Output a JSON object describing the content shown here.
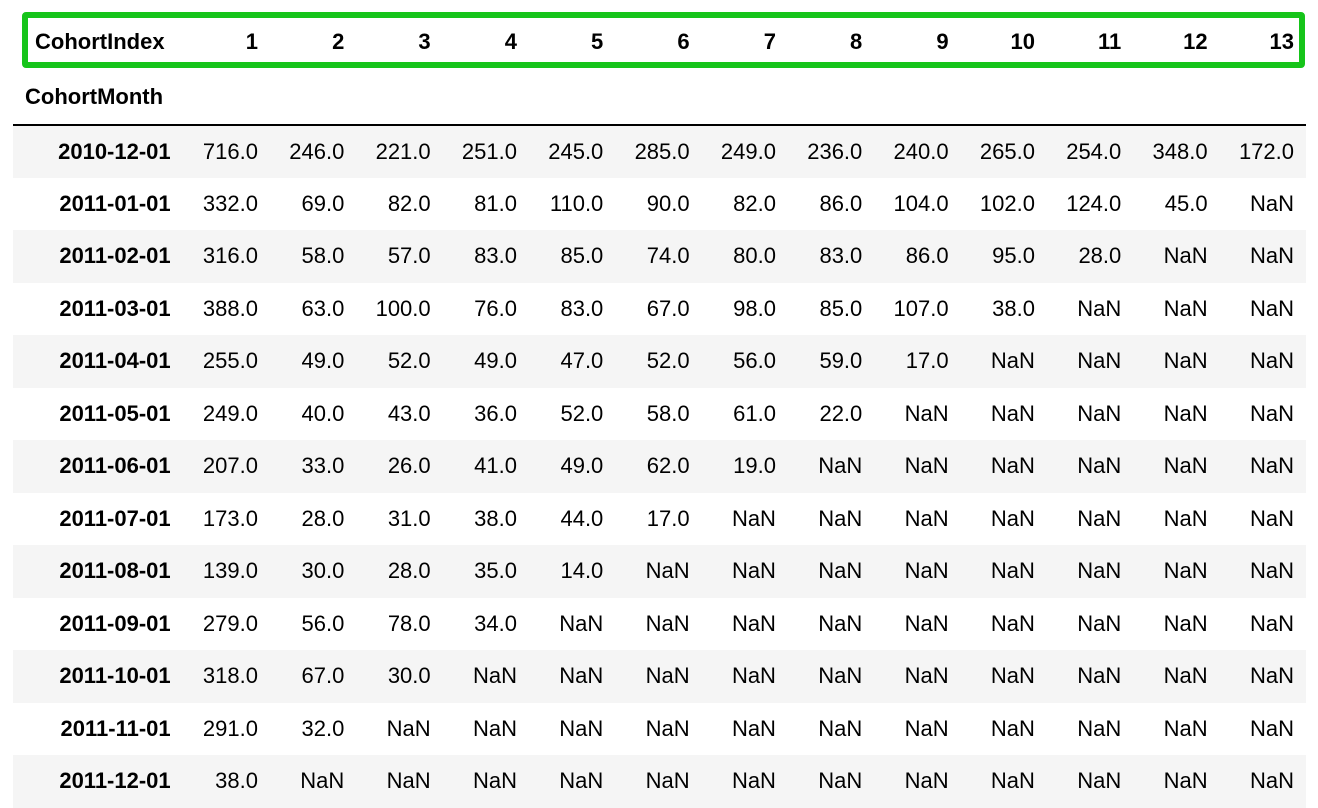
{
  "table": {
    "columns_name": "CohortIndex",
    "index_name": "CohortMonth",
    "columns": [
      "1",
      "2",
      "3",
      "4",
      "5",
      "6",
      "7",
      "8",
      "9",
      "10",
      "11",
      "12",
      "13"
    ],
    "rows": [
      {
        "index": "2010-12-01",
        "values": [
          "716.0",
          "246.0",
          "221.0",
          "251.0",
          "245.0",
          "285.0",
          "249.0",
          "236.0",
          "240.0",
          "265.0",
          "254.0",
          "348.0",
          "172.0"
        ]
      },
      {
        "index": "2011-01-01",
        "values": [
          "332.0",
          "69.0",
          "82.0",
          "81.0",
          "110.0",
          "90.0",
          "82.0",
          "86.0",
          "104.0",
          "102.0",
          "124.0",
          "45.0",
          "NaN"
        ]
      },
      {
        "index": "2011-02-01",
        "values": [
          "316.0",
          "58.0",
          "57.0",
          "83.0",
          "85.0",
          "74.0",
          "80.0",
          "83.0",
          "86.0",
          "95.0",
          "28.0",
          "NaN",
          "NaN"
        ]
      },
      {
        "index": "2011-03-01",
        "values": [
          "388.0",
          "63.0",
          "100.0",
          "76.0",
          "83.0",
          "67.0",
          "98.0",
          "85.0",
          "107.0",
          "38.0",
          "NaN",
          "NaN",
          "NaN"
        ]
      },
      {
        "index": "2011-04-01",
        "values": [
          "255.0",
          "49.0",
          "52.0",
          "49.0",
          "47.0",
          "52.0",
          "56.0",
          "59.0",
          "17.0",
          "NaN",
          "NaN",
          "NaN",
          "NaN"
        ]
      },
      {
        "index": "2011-05-01",
        "values": [
          "249.0",
          "40.0",
          "43.0",
          "36.0",
          "52.0",
          "58.0",
          "61.0",
          "22.0",
          "NaN",
          "NaN",
          "NaN",
          "NaN",
          "NaN"
        ]
      },
      {
        "index": "2011-06-01",
        "values": [
          "207.0",
          "33.0",
          "26.0",
          "41.0",
          "49.0",
          "62.0",
          "19.0",
          "NaN",
          "NaN",
          "NaN",
          "NaN",
          "NaN",
          "NaN"
        ]
      },
      {
        "index": "2011-07-01",
        "values": [
          "173.0",
          "28.0",
          "31.0",
          "38.0",
          "44.0",
          "17.0",
          "NaN",
          "NaN",
          "NaN",
          "NaN",
          "NaN",
          "NaN",
          "NaN"
        ]
      },
      {
        "index": "2011-08-01",
        "values": [
          "139.0",
          "30.0",
          "28.0",
          "35.0",
          "14.0",
          "NaN",
          "NaN",
          "NaN",
          "NaN",
          "NaN",
          "NaN",
          "NaN",
          "NaN"
        ]
      },
      {
        "index": "2011-09-01",
        "values": [
          "279.0",
          "56.0",
          "78.0",
          "34.0",
          "NaN",
          "NaN",
          "NaN",
          "NaN",
          "NaN",
          "NaN",
          "NaN",
          "NaN",
          "NaN"
        ]
      },
      {
        "index": "2011-10-01",
        "values": [
          "318.0",
          "67.0",
          "30.0",
          "NaN",
          "NaN",
          "NaN",
          "NaN",
          "NaN",
          "NaN",
          "NaN",
          "NaN",
          "NaN",
          "NaN"
        ]
      },
      {
        "index": "2011-11-01",
        "values": [
          "291.0",
          "32.0",
          "NaN",
          "NaN",
          "NaN",
          "NaN",
          "NaN",
          "NaN",
          "NaN",
          "NaN",
          "NaN",
          "NaN",
          "NaN"
        ]
      },
      {
        "index": "2011-12-01",
        "values": [
          "38.0",
          "NaN",
          "NaN",
          "NaN",
          "NaN",
          "NaN",
          "NaN",
          "NaN",
          "NaN",
          "NaN",
          "NaN",
          "NaN",
          "NaN"
        ]
      }
    ]
  },
  "highlight": {
    "color": "#16c41a",
    "target": "column-header-row"
  },
  "colors": {
    "row_stripe": "#f5f5f5",
    "text": "#000000"
  }
}
